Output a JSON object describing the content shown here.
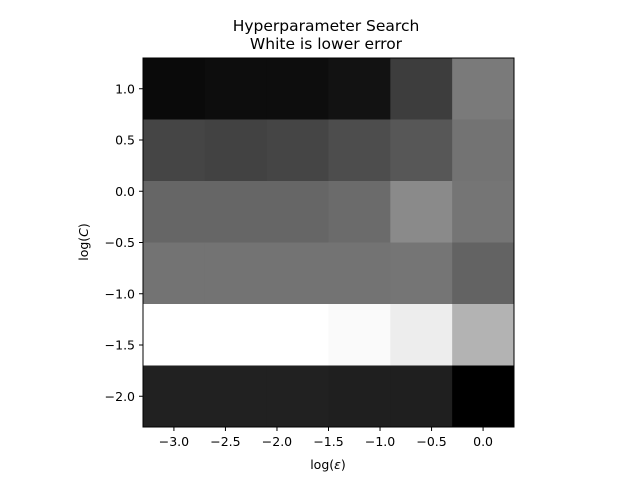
{
  "chart_data": {
    "type": "heatmap",
    "title": "Hyperparameter Search",
    "subtitle": "White is lower error",
    "xlabel_prefix": "log(",
    "xlabel_symbol": "ε",
    "xlabel_suffix": ")",
    "ylabel_prefix": "log(",
    "ylabel_symbol": "C",
    "ylabel_suffix": ")",
    "colormap": "gray",
    "x_centers": [
      -3.0,
      -2.4,
      -1.8,
      -1.2,
      -0.6,
      0.0
    ],
    "y_centers": [
      1.0,
      0.4,
      -0.2,
      -0.8,
      -1.4,
      -2.0
    ],
    "xlim": [
      -3.3,
      0.3
    ],
    "ylim": [
      -2.3,
      1.3
    ],
    "x_ticks": [
      -3.0,
      -2.5,
      -2.0,
      -1.5,
      -1.0,
      -0.5,
      0.0
    ],
    "x_tick_labels": [
      "−3.0",
      "−2.5",
      "−2.0",
      "−1.5",
      "−1.0",
      "−0.5",
      "0.0"
    ],
    "y_ticks": [
      1.0,
      0.5,
      0.0,
      -0.5,
      -1.0,
      -1.5,
      -2.0
    ],
    "y_tick_labels": [
      "1.0",
      "0.5",
      "0.0",
      "−0.5",
      "−1.0",
      "−1.5",
      "−2.0"
    ],
    "value_range": [
      0,
      1
    ],
    "values": [
      [
        0.04,
        0.05,
        0.05,
        0.07,
        0.24,
        0.48
      ],
      [
        0.27,
        0.26,
        0.27,
        0.3,
        0.34,
        0.45
      ],
      [
        0.4,
        0.4,
        0.4,
        0.42,
        0.54,
        0.46
      ],
      [
        0.45,
        0.45,
        0.45,
        0.45,
        0.46,
        0.39
      ],
      [
        1.0,
        1.0,
        1.0,
        0.98,
        0.93,
        0.7
      ],
      [
        0.13,
        0.13,
        0.13,
        0.12,
        0.12,
        0.0
      ]
    ]
  }
}
